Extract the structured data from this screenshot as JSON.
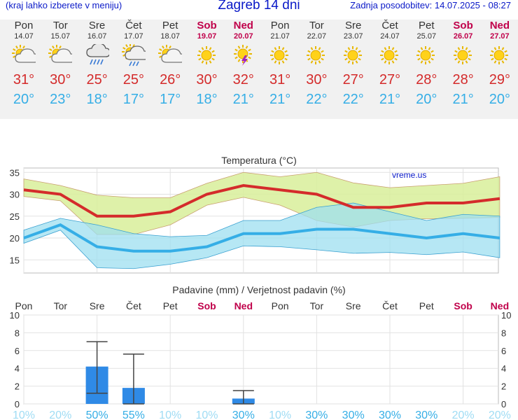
{
  "header": {
    "hint": "(kraj lahko izberete v meniju)",
    "title": "Zagreb 14 dni",
    "updated": "Zadnja posodobitev: 14.07.2025 - 08:27"
  },
  "days": [
    {
      "name": "Pon",
      "date": "14.07",
      "weekend": false,
      "icon": "sun-cloud-icon",
      "tmax": "31°",
      "tmin": "20°"
    },
    {
      "name": "Tor",
      "date": "15.07",
      "weekend": false,
      "icon": "sun-cloud-icon",
      "tmax": "30°",
      "tmin": "23°"
    },
    {
      "name": "Sre",
      "date": "16.07",
      "weekend": false,
      "icon": "rain-cloud-icon",
      "tmax": "25°",
      "tmin": "18°"
    },
    {
      "name": "Čet",
      "date": "17.07",
      "weekend": false,
      "icon": "sun-rain-cloud-icon",
      "tmax": "25°",
      "tmin": "17°"
    },
    {
      "name": "Pet",
      "date": "18.07",
      "weekend": false,
      "icon": "sun-cloud-icon",
      "tmax": "26°",
      "tmin": "17°"
    },
    {
      "name": "Sob",
      "date": "19.07",
      "weekend": true,
      "icon": "sun-icon",
      "tmax": "30°",
      "tmin": "18°"
    },
    {
      "name": "Ned",
      "date": "20.07",
      "weekend": true,
      "icon": "sun-storm-icon",
      "tmax": "32°",
      "tmin": "21°"
    },
    {
      "name": "Pon",
      "date": "21.07",
      "weekend": false,
      "icon": "sun-icon",
      "tmax": "31°",
      "tmin": "21°"
    },
    {
      "name": "Tor",
      "date": "22.07",
      "weekend": false,
      "icon": "sun-icon",
      "tmax": "30°",
      "tmin": "22°"
    },
    {
      "name": "Sre",
      "date": "23.07",
      "weekend": false,
      "icon": "sun-icon",
      "tmax": "27°",
      "tmin": "22°"
    },
    {
      "name": "Čet",
      "date": "24.07",
      "weekend": false,
      "icon": "sun-icon",
      "tmax": "27°",
      "tmin": "21°"
    },
    {
      "name": "Pet",
      "date": "25.07",
      "weekend": false,
      "icon": "sun-icon",
      "tmax": "28°",
      "tmin": "20°"
    },
    {
      "name": "Sob",
      "date": "26.07",
      "weekend": true,
      "icon": "sun-icon",
      "tmax": "28°",
      "tmin": "21°"
    },
    {
      "name": "Ned",
      "date": "27.07",
      "weekend": true,
      "icon": "sun-icon",
      "tmax": "29°",
      "tmin": "20°"
    }
  ],
  "colors": {
    "title": "#0a19c8",
    "weekend": "#c0004a",
    "tmax": "#d42b2b",
    "tmin": "#35aee6",
    "maxBand": "#d8ee9a",
    "minBand": "#9edff0",
    "overlap": "#7fd08c",
    "precipBar": "#2f8ae6",
    "probLow": "#9fdcf4",
    "probHigh": "#35aee6"
  },
  "chart_data": [
    {
      "type": "line",
      "title": "Temperatura (°C)",
      "watermark": "vreme.us",
      "ylim": [
        12,
        36
      ],
      "yticks": [
        15,
        20,
        25,
        30,
        35
      ],
      "grid": true,
      "categories": [
        "14.07",
        "15.07",
        "16.07",
        "17.07",
        "18.07",
        "19.07",
        "20.07",
        "21.07",
        "22.07",
        "23.07",
        "24.07",
        "25.07",
        "26.07",
        "27.07"
      ],
      "series": [
        {
          "name": "tmax",
          "values": [
            31,
            30,
            25,
            25,
            26,
            30,
            32,
            31,
            30,
            27,
            27,
            28,
            28,
            29
          ]
        },
        {
          "name": "tmin",
          "values": [
            20,
            23,
            18,
            17,
            17,
            18,
            21,
            21,
            22,
            22,
            21,
            20,
            21,
            20
          ]
        },
        {
          "name": "tmax_band_high",
          "values": [
            33.5,
            32,
            29.8,
            29.2,
            29.2,
            32.5,
            35,
            34,
            35,
            32.6,
            31.5,
            32,
            32.5,
            34
          ]
        },
        {
          "name": "tmax_band_low",
          "values": [
            29.5,
            28.5,
            20.8,
            20.8,
            23,
            27.5,
            29.3,
            27.5,
            24,
            22.5,
            24,
            24.4,
            24.5,
            24.7
          ]
        },
        {
          "name": "tmin_band_high",
          "values": [
            21.8,
            24.5,
            23,
            21,
            20.3,
            20.6,
            24,
            24,
            27,
            28,
            26,
            24,
            25.4,
            25
          ]
        },
        {
          "name": "tmin_band_low",
          "values": [
            18.8,
            21.8,
            13.2,
            13,
            14,
            15.5,
            18.2,
            18,
            17.3,
            16.5,
            16.7,
            16.2,
            16.8,
            15.5
          ]
        }
      ]
    },
    {
      "type": "bar",
      "title": "Padavine (mm) / Verjetnost padavin (%)",
      "ylim": [
        0,
        10
      ],
      "yticks": [
        0,
        2,
        4,
        6,
        8,
        10
      ],
      "grid": true,
      "categories": [
        "Pon",
        "Tor",
        "Sre",
        "Čet",
        "Pet",
        "Sob",
        "Ned",
        "Pon",
        "Tor",
        "Sre",
        "Čet",
        "Pet",
        "Sob",
        "Ned"
      ],
      "weekend": [
        false,
        false,
        false,
        false,
        false,
        true,
        true,
        false,
        false,
        false,
        false,
        false,
        true,
        true
      ],
      "series": [
        {
          "name": "precip",
          "values": [
            0,
            0,
            4.2,
            1.8,
            0,
            0,
            0.6,
            0,
            0,
            0,
            0,
            0,
            0,
            0
          ]
        },
        {
          "name": "precip_range_low",
          "values": [
            null,
            null,
            1.2,
            0,
            null,
            null,
            0,
            null,
            null,
            null,
            null,
            null,
            null,
            null
          ]
        },
        {
          "name": "precip_range_high",
          "values": [
            null,
            null,
            7.0,
            5.6,
            null,
            null,
            1.5,
            null,
            null,
            null,
            null,
            null,
            null,
            null
          ]
        }
      ],
      "probability": [
        "10%",
        "20%",
        "50%",
        "55%",
        "10%",
        "10%",
        "30%",
        "10%",
        "30%",
        "30%",
        "30%",
        "30%",
        "20%",
        "20%"
      ]
    }
  ]
}
